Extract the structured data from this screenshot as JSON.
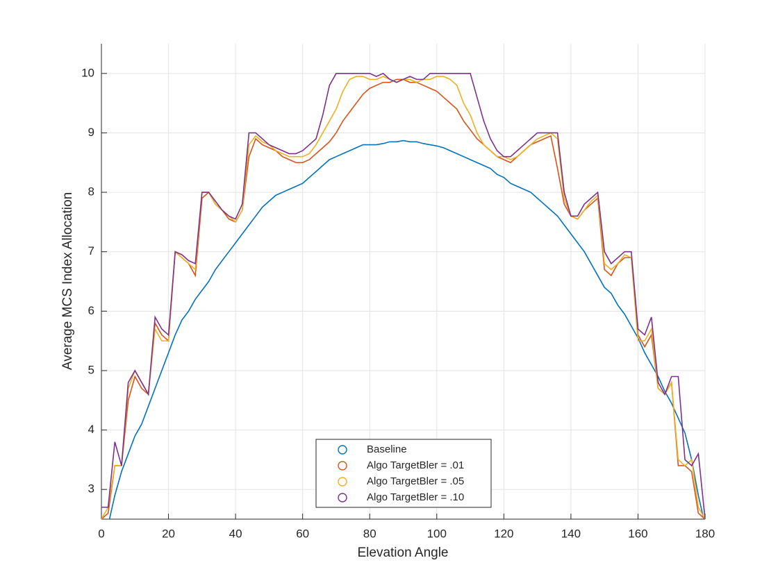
{
  "chart_data": {
    "type": "line",
    "xlabel": "Elevation Angle",
    "ylabel": "Average MCS Index Allocation",
    "x": [
      0,
      2,
      4,
      6,
      8,
      10,
      12,
      14,
      16,
      18,
      20,
      22,
      24,
      26,
      28,
      30,
      32,
      34,
      36,
      38,
      40,
      42,
      44,
      46,
      48,
      50,
      52,
      54,
      56,
      58,
      60,
      62,
      64,
      66,
      68,
      70,
      72,
      74,
      76,
      78,
      80,
      82,
      84,
      86,
      88,
      90,
      92,
      94,
      96,
      98,
      100,
      102,
      104,
      106,
      108,
      110,
      112,
      114,
      116,
      118,
      120,
      122,
      124,
      126,
      128,
      130,
      132,
      134,
      136,
      138,
      140,
      142,
      144,
      146,
      148,
      150,
      152,
      154,
      156,
      158,
      160,
      162,
      164,
      166,
      168,
      170,
      172,
      174,
      176,
      178,
      180
    ],
    "series": [
      {
        "name": "Baseline",
        "color": "#0072BD",
        "values": [
          2.1,
          2.4,
          2.9,
          3.3,
          3.6,
          3.9,
          4.1,
          4.4,
          4.7,
          5.0,
          5.3,
          5.6,
          5.85,
          6.0,
          6.2,
          6.35,
          6.5,
          6.7,
          6.85,
          7.0,
          7.15,
          7.3,
          7.45,
          7.6,
          7.75,
          7.85,
          7.95,
          8.0,
          8.05,
          8.1,
          8.15,
          8.25,
          8.35,
          8.45,
          8.55,
          8.6,
          8.65,
          8.7,
          8.75,
          8.8,
          8.8,
          8.8,
          8.82,
          8.85,
          8.85,
          8.87,
          8.85,
          8.85,
          8.82,
          8.8,
          8.78,
          8.75,
          8.7,
          8.65,
          8.6,
          8.55,
          8.5,
          8.45,
          8.4,
          8.3,
          8.25,
          8.15,
          8.1,
          8.05,
          8.0,
          7.9,
          7.8,
          7.7,
          7.6,
          7.45,
          7.3,
          7.15,
          7.0,
          6.8,
          6.6,
          6.4,
          6.3,
          6.1,
          5.95,
          5.75,
          5.55,
          5.3,
          5.1,
          4.9,
          4.65,
          4.45,
          4.2,
          3.95,
          3.5,
          2.9,
          2.4
        ]
      },
      {
        "name": "Algo TargetBler = .01",
        "color": "#D95319",
        "values": [
          2.5,
          2.6,
          3.4,
          3.4,
          4.5,
          4.9,
          4.7,
          4.6,
          5.8,
          5.6,
          5.5,
          7.0,
          6.9,
          6.8,
          6.6,
          7.9,
          8.0,
          7.8,
          7.7,
          7.55,
          7.5,
          7.7,
          8.6,
          8.9,
          8.8,
          8.75,
          8.7,
          8.6,
          8.55,
          8.5,
          8.5,
          8.55,
          8.65,
          8.75,
          8.85,
          9.0,
          9.2,
          9.35,
          9.5,
          9.65,
          9.75,
          9.8,
          9.85,
          9.85,
          9.9,
          9.9,
          9.85,
          9.85,
          9.8,
          9.75,
          9.7,
          9.6,
          9.5,
          9.4,
          9.2,
          9.05,
          8.9,
          8.8,
          8.7,
          8.6,
          8.55,
          8.5,
          8.6,
          8.7,
          8.8,
          8.85,
          8.9,
          8.95,
          8.4,
          7.8,
          7.6,
          7.55,
          7.7,
          7.8,
          7.9,
          6.7,
          6.6,
          6.8,
          6.9,
          6.9,
          5.6,
          5.4,
          5.6,
          4.7,
          4.6,
          4.8,
          3.4,
          3.4,
          3.3,
          2.6,
          2.5
        ]
      },
      {
        "name": "Algo TargetBler = .05",
        "color": "#EDB120",
        "values": [
          2.5,
          2.7,
          3.4,
          3.4,
          4.7,
          5.0,
          4.8,
          4.6,
          5.7,
          5.5,
          5.5,
          7.0,
          6.9,
          6.8,
          6.7,
          8.0,
          8.0,
          7.8,
          7.7,
          7.6,
          7.5,
          7.7,
          8.8,
          8.95,
          8.85,
          8.8,
          8.7,
          8.65,
          8.6,
          8.6,
          8.6,
          8.65,
          8.8,
          9.0,
          9.2,
          9.4,
          9.7,
          9.9,
          9.95,
          9.95,
          9.9,
          9.9,
          9.95,
          9.9,
          9.85,
          9.9,
          9.9,
          9.85,
          9.9,
          9.9,
          9.95,
          9.95,
          9.9,
          9.8,
          9.5,
          9.3,
          9.0,
          8.8,
          8.7,
          8.6,
          8.6,
          8.55,
          8.6,
          8.7,
          8.8,
          8.9,
          8.95,
          9.0,
          8.9,
          7.9,
          7.6,
          7.55,
          7.7,
          7.85,
          7.95,
          6.8,
          6.7,
          6.8,
          6.95,
          6.9,
          5.5,
          5.5,
          5.7,
          4.7,
          4.6,
          4.8,
          3.5,
          3.4,
          3.5,
          2.7,
          2.5
        ]
      },
      {
        "name": "Algo TargetBler = .10",
        "color": "#7E2F8E",
        "values": [
          2.7,
          2.7,
          3.8,
          3.4,
          4.8,
          5.0,
          4.8,
          4.6,
          5.9,
          5.7,
          5.6,
          7.0,
          6.95,
          6.85,
          6.8,
          8.0,
          8.0,
          7.85,
          7.7,
          7.6,
          7.55,
          7.8,
          9.0,
          9.0,
          8.9,
          8.8,
          8.75,
          8.7,
          8.65,
          8.65,
          8.7,
          8.8,
          8.9,
          9.3,
          9.8,
          10,
          10,
          10,
          10,
          10,
          10,
          9.95,
          10,
          9.9,
          9.85,
          9.9,
          9.95,
          9.9,
          9.9,
          10,
          10,
          10,
          10,
          10,
          10,
          10,
          9.6,
          9.2,
          8.9,
          8.7,
          8.6,
          8.6,
          8.7,
          8.8,
          8.9,
          9.0,
          9.0,
          9.0,
          9.0,
          8.0,
          7.6,
          7.6,
          7.8,
          7.9,
          8.0,
          7.0,
          6.8,
          6.9,
          7.0,
          7.0,
          5.7,
          5.6,
          5.9,
          4.8,
          4.6,
          4.9,
          4.9,
          3.5,
          3.4,
          3.6,
          2.5
        ]
      }
    ],
    "xlim": [
      0,
      180
    ],
    "xticks": [
      0,
      20,
      40,
      60,
      80,
      100,
      120,
      140,
      160,
      180
    ],
    "ylim": [
      2.5,
      10.5
    ],
    "yticks": [
      3,
      4,
      5,
      6,
      7,
      8,
      9,
      10
    ],
    "grid": true,
    "legend": "lower center"
  }
}
